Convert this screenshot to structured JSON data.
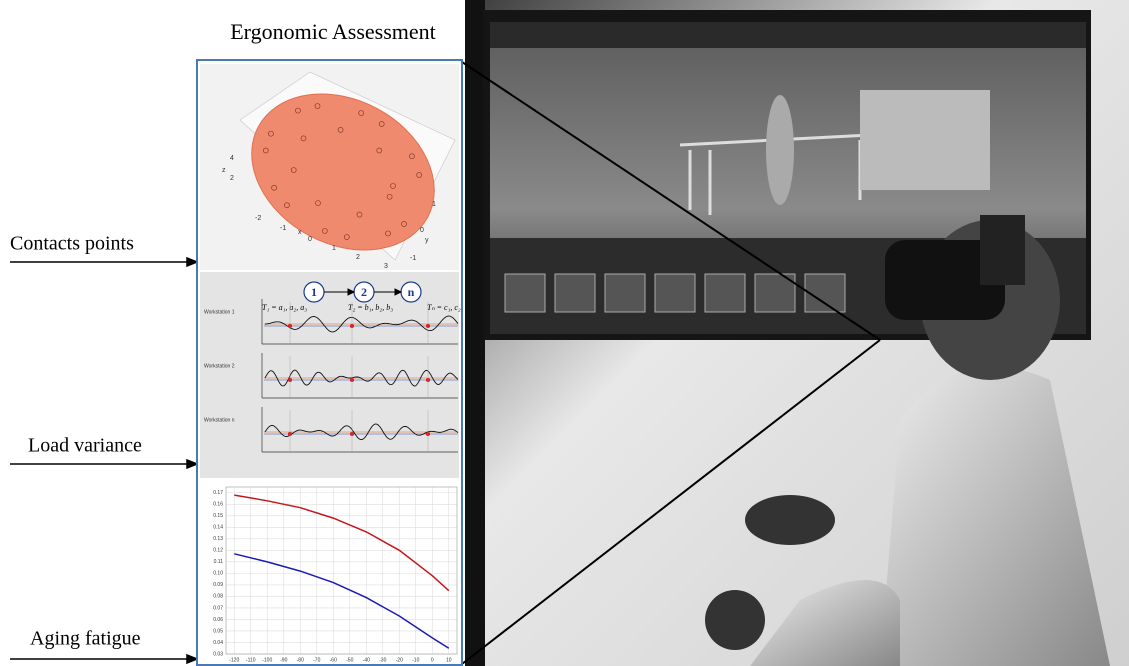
{
  "title": "Ergonomic Assessment",
  "inputs": [
    "Contacts points",
    "Load variance",
    "Aging fatigue"
  ],
  "contact_plot": {
    "axis_labels": {
      "x": "x",
      "y": "y",
      "z": "z"
    },
    "xticks": [
      -2,
      -1,
      0,
      1,
      2,
      3
    ],
    "yticks": [
      -1,
      0,
      1
    ],
    "zticks": [
      2,
      4
    ]
  },
  "load_variance": {
    "nodes": [
      "1",
      "2",
      "n"
    ],
    "transitions": [
      "T₁ = a₁, a₂, a₃",
      "T₂ = b₁, b₂, b₃",
      "Tₙ = c₁, c₂"
    ],
    "workstations": [
      "Workstation 1",
      "Workstation 2",
      "Workstation n"
    ]
  },
  "fatigue_chart": {
    "type": "line",
    "x": [
      -120,
      -100,
      -80,
      -60,
      -40,
      -20,
      0,
      10
    ],
    "series": [
      {
        "color": "#c4161c",
        "values": [
          0.168,
          0.163,
          0.157,
          0.148,
          0.136,
          0.12,
          0.098,
          0.085
        ]
      },
      {
        "color": "#1a1ab8",
        "values": [
          0.117,
          0.11,
          0.102,
          0.092,
          0.079,
          0.063,
          0.044,
          0.035
        ]
      }
    ],
    "xlim": [
      -125,
      15
    ],
    "ylim": [
      0.03,
      0.175
    ],
    "xticks": [
      -120,
      -110,
      -100,
      -90,
      -80,
      -70,
      -60,
      -50,
      -40,
      -30,
      -20,
      -10,
      0,
      10
    ],
    "yticks": [
      0.03,
      0.04,
      0.05,
      0.06,
      0.07,
      0.08,
      0.09,
      {
        "value": 0.1,
        "label": "0.10"
      },
      0.11,
      0.12,
      0.13,
      0.14,
      0.15,
      0.16,
      0.17
    ],
    "grid": true
  }
}
